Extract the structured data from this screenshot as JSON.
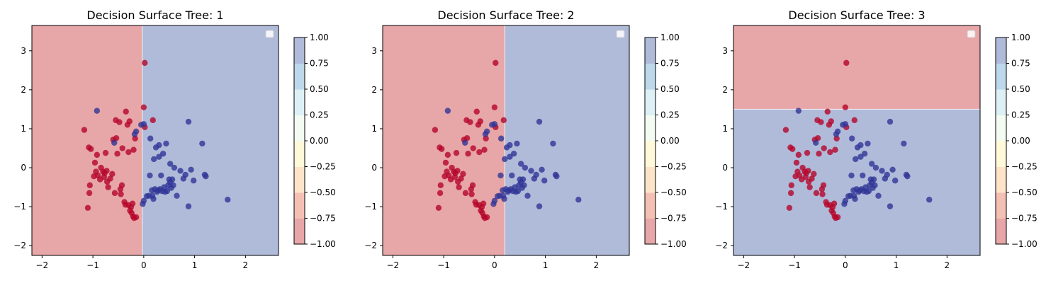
{
  "colors": {
    "neg_region": "#e7a6a8",
    "pos_region": "#b0bbda",
    "class_neg_point": "#b5062a",
    "class_pos_point": "#313696",
    "colorbar": [
      "#e7a6a8",
      "#f5c0b4",
      "#fde3c8",
      "#fff9d9",
      "#f4fbf2",
      "#dcf0f5",
      "#bcd8ea",
      "#b0bbda"
    ]
  },
  "chart_data": [
    {
      "type": "scatter",
      "title": "Decision Surface Tree: 1",
      "xlim": [
        -2.2,
        2.65
      ],
      "ylim": [
        -2.25,
        3.65
      ],
      "xticks": [
        -2,
        -1,
        0,
        1,
        2
      ],
      "yticks": [
        -2,
        -1,
        0,
        1,
        2,
        3
      ],
      "decision_rule": {
        "feature": "x",
        "threshold": -0.03,
        "below": "negative",
        "above": "positive"
      },
      "legend": {
        "position": "top-right",
        "entries": []
      },
      "colorbar": {
        "min": -1.0,
        "max": 1.0,
        "ticks": [
          "1.00",
          "0.75",
          "0.50",
          "0.25",
          "0.00",
          "−0.25",
          "−0.50",
          "−0.75",
          "−1.00"
        ]
      },
      "series": [
        {
          "class": -1,
          "points": [
            [
              -1.17,
              0.97
            ],
            [
              -1.1,
              -1.03
            ],
            [
              -1.07,
              -0.65
            ],
            [
              -1.06,
              -0.45
            ],
            [
              -1.08,
              0.52
            ],
            [
              -1.04,
              0.48
            ],
            [
              -0.98,
              -0.22
            ],
            [
              -0.94,
              -0.1
            ],
            [
              -0.96,
              0.13
            ],
            [
              -0.92,
              0.33
            ],
            [
              -0.9,
              -0.2
            ],
            [
              -0.86,
              -0.3
            ],
            [
              -0.84,
              0.0
            ],
            [
              -0.8,
              -0.1
            ],
            [
              -0.78,
              -0.24
            ],
            [
              -0.75,
              0.38
            ],
            [
              -0.77,
              -0.14
            ],
            [
              -0.73,
              -0.08
            ],
            [
              -0.72,
              -0.36
            ],
            [
              -0.7,
              -0.5
            ],
            [
              -0.66,
              -0.28
            ],
            [
              -0.62,
              -0.16
            ],
            [
              -0.6,
              0.72
            ],
            [
              -0.57,
              -0.65
            ],
            [
              -0.54,
              0.76
            ],
            [
              -0.55,
              1.22
            ],
            [
              -0.52,
              0.36
            ],
            [
              -0.48,
              1.17
            ],
            [
              -0.46,
              -0.55
            ],
            [
              -0.45,
              -0.68
            ],
            [
              -0.43,
              -0.45
            ],
            [
              -0.42,
              0.5
            ],
            [
              -0.38,
              -0.88
            ],
            [
              -0.36,
              -0.95
            ],
            [
              -0.35,
              1.44
            ],
            [
              -0.32,
              1.1
            ],
            [
              -0.3,
              0.4
            ],
            [
              -0.3,
              -0.96
            ],
            [
              -0.28,
              1.19
            ],
            [
              -0.27,
              -1.1
            ],
            [
              -0.25,
              -1.01
            ],
            [
              -0.24,
              -1.16
            ],
            [
              -0.22,
              -0.92
            ],
            [
              -0.21,
              -1.25
            ],
            [
              -0.19,
              -1.29
            ],
            [
              -0.17,
              0.75
            ],
            [
              -0.15,
              -1.27
            ],
            [
              -0.2,
              0.46
            ],
            [
              0.02,
              1.04
            ],
            [
              0.0,
              1.55
            ],
            [
              0.02,
              2.69
            ],
            [
              0.18,
              1.22
            ]
          ]
        },
        {
          "class": 1,
          "points": [
            [
              -0.92,
              1.46
            ],
            [
              -0.58,
              0.64
            ],
            [
              -0.18,
              0.86
            ],
            [
              -0.15,
              0.93
            ],
            [
              -0.05,
              1.1
            ],
            [
              0.0,
              1.12
            ],
            [
              -0.02,
              -0.93
            ],
            [
              0.0,
              -0.85
            ],
            [
              0.06,
              -0.73
            ],
            [
              0.1,
              -0.72
            ],
            [
              0.12,
              -0.2
            ],
            [
              0.13,
              0.75
            ],
            [
              0.16,
              -0.58
            ],
            [
              0.17,
              -0.72
            ],
            [
              0.19,
              -0.8
            ],
            [
              0.2,
              0.22
            ],
            [
              0.22,
              -0.55
            ],
            [
              0.24,
              0.52
            ],
            [
              0.26,
              -0.62
            ],
            [
              0.28,
              -0.58
            ],
            [
              0.3,
              0.58
            ],
            [
              0.3,
              0.28
            ],
            [
              0.32,
              -0.55
            ],
            [
              0.34,
              -0.2
            ],
            [
              0.36,
              -0.6
            ],
            [
              0.38,
              0.36
            ],
            [
              0.4,
              -0.5
            ],
            [
              0.42,
              -0.62
            ],
            [
              0.44,
              0.62
            ],
            [
              0.46,
              -0.6
            ],
            [
              0.48,
              -0.45
            ],
            [
              0.5,
              -0.3
            ],
            [
              0.52,
              -0.38
            ],
            [
              0.52,
              0.1
            ],
            [
              0.54,
              -0.52
            ],
            [
              0.56,
              -0.3
            ],
            [
              0.58,
              -0.45
            ],
            [
              0.6,
              0.0
            ],
            [
              0.65,
              -0.72
            ],
            [
              0.72,
              -0.08
            ],
            [
              0.78,
              -0.28
            ],
            [
              0.82,
              -0.18
            ],
            [
              0.88,
              1.18
            ],
            [
              0.88,
              -0.99
            ],
            [
              0.93,
              -0.05
            ],
            [
              0.98,
              -0.33
            ],
            [
              1.15,
              0.62
            ],
            [
              1.2,
              -0.18
            ],
            [
              1.22,
              -0.22
            ],
            [
              1.65,
              -0.82
            ]
          ]
        }
      ]
    },
    {
      "type": "scatter",
      "title": "Decision Surface Tree: 2",
      "xlim": [
        -2.2,
        2.65
      ],
      "ylim": [
        -2.25,
        3.65
      ],
      "xticks": [
        -2,
        -1,
        0,
        1,
        2
      ],
      "yticks": [
        -2,
        -1,
        0,
        1,
        2,
        3
      ],
      "decision_rule": {
        "feature": "x",
        "threshold": 0.2,
        "below": "negative",
        "above": "positive"
      },
      "legend": {
        "position": "top-right",
        "entries": []
      },
      "colorbar": {
        "min": -1.0,
        "max": 1.0,
        "ticks": [
          "1.00",
          "0.75",
          "0.50",
          "0.25",
          "0.00",
          "−0.25",
          "−0.50",
          "−0.75",
          "−1.00"
        ]
      },
      "series": "same as panel 1"
    },
    {
      "type": "scatter",
      "title": "Decision Surface Tree: 3",
      "xlim": [
        -2.2,
        2.65
      ],
      "ylim": [
        -2.25,
        3.65
      ],
      "xticks": [
        -2,
        -1,
        0,
        1,
        2
      ],
      "yticks": [
        -2,
        -1,
        0,
        1,
        2,
        3
      ],
      "decision_rule": {
        "feature": "y",
        "threshold": 1.5,
        "below": "positive",
        "above": "negative"
      },
      "legend": {
        "position": "top-right",
        "entries": []
      },
      "colorbar": {
        "min": -1.0,
        "max": 1.0,
        "ticks": [
          "1.00",
          "0.75",
          "0.50",
          "0.25",
          "0.00",
          "−0.25",
          "−0.50",
          "−0.75",
          "−1.00"
        ]
      },
      "series": "same as panel 1"
    }
  ]
}
